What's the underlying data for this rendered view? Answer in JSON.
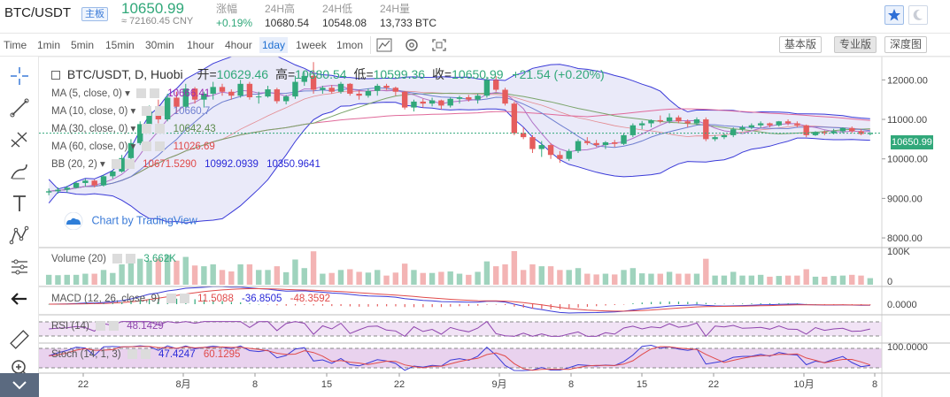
{
  "header": {
    "symbol": "BTC/USDT",
    "badge": "主板",
    "price": "10650.99",
    "cny": "≈ 72160.45 CNY",
    "stats": [
      {
        "label": "涨幅",
        "value": "+0.19%",
        "up": true
      },
      {
        "label": "24H高",
        "value": "10680.54",
        "up": false
      },
      {
        "label": "24H低",
        "value": "10548.08",
        "up": false
      },
      {
        "label": "24H量",
        "value": "13,733 BTC",
        "up": false
      }
    ],
    "buttons": [
      "star-icon",
      "moon-icon"
    ]
  },
  "toolbar": {
    "time_label": "Time",
    "intervals": [
      "1min",
      "5min",
      "15min",
      "30min",
      "1hour",
      "4hour",
      "1day",
      "1week",
      "1mon"
    ],
    "active_interval": "1day",
    "tools": [
      "chart-type-icon",
      "settings-icon",
      "fullscreen-icon"
    ],
    "modes": [
      "基本版",
      "专业版",
      "深度图"
    ],
    "active_mode": "专业版"
  },
  "left_tools": [
    "crosshair-icon",
    "trend-line-icon",
    "fib-icon",
    "brush-icon",
    "text-icon",
    "pattern-icon",
    "forecast-icon",
    "back-arrow-icon",
    "ruler-icon",
    "zoom-icon",
    "expand-chevron-icon"
  ],
  "main": {
    "title": "BTC/USDT, D, Huobi",
    "ohlc": [
      {
        "label": "开=",
        "value": "10629.46"
      },
      {
        "label": "高=",
        "value": "10680.54"
      },
      {
        "label": "低=",
        "value": "10599.36"
      },
      {
        "label": "收=",
        "value": "10650.99"
      }
    ],
    "change": "+21.54 (+0.20%)",
    "indicators": [
      {
        "name": "MA (5, close, 0)",
        "values": [
          "10666.41"
        ],
        "colors": [
          "#9c27b0"
        ]
      },
      {
        "name": "MA (10, close, 0)",
        "values": [
          "10660.7"
        ],
        "colors": [
          "#6f7fd0"
        ]
      },
      {
        "name": "MA (30, close, 0)",
        "values": [
          "10642.43"
        ],
        "colors": [
          "#7aa46a"
        ]
      },
      {
        "name": "MA (60, close, 0)",
        "values": [
          "11026.69"
        ],
        "colors": [
          "#e04a4a"
        ]
      },
      {
        "name": "BB (20, 2)",
        "values": [
          "10671.5290",
          "10992.0939",
          "10350.9641"
        ],
        "colors": [
          "#e04a4a",
          "#2a2ad8",
          "#2a2ad8"
        ]
      }
    ],
    "watermark": "Chart by TradingView",
    "price_tag": "10650.99",
    "y_ticks": [
      "12000.00",
      "11000.00",
      "10000.00",
      "9000.00",
      "8000.00"
    ]
  },
  "volume": {
    "name": "Volume (20)",
    "value": "3.662K",
    "y_ticks": [
      "100K",
      "0"
    ]
  },
  "macd": {
    "name": "MACD (12, 26, close, 9)",
    "values": [
      "11.5088",
      "-36.8505",
      "-48.3592"
    ],
    "y_tick": "0.0000"
  },
  "rsi": {
    "name": "RSI (14)",
    "value": "48.1429"
  },
  "stoch": {
    "name": "Stoch (14, 1, 3)",
    "values": [
      "47.4247",
      "60.1295"
    ],
    "y_tick": "100.0000"
  },
  "x_ticks": [
    "22",
    "8月",
    "8",
    "15",
    "22",
    "9月",
    "8",
    "15",
    "22",
    "10月",
    "8"
  ],
  "colors": {
    "up": "#31a87a",
    "down": "#e55d5d",
    "bb_fill": "#e3e3f7",
    "bb_line": "#3a3ad8",
    "accent": "#1e6fd2"
  },
  "chart_data": {
    "type": "candlestick",
    "y_range": [
      7800,
      12500
    ],
    "candles": [
      [
        9150,
        9250,
        9080,
        9180
      ],
      [
        9180,
        9280,
        9120,
        9220
      ],
      [
        9220,
        9320,
        9150,
        9270
      ],
      [
        9270,
        9420,
        9250,
        9390
      ],
      [
        9390,
        9500,
        9300,
        9450
      ],
      [
        9450,
        9480,
        9280,
        9330
      ],
      [
        9330,
        9600,
        9300,
        9560
      ],
      [
        9560,
        9720,
        9500,
        9680
      ],
      [
        9680,
        10100,
        9650,
        10020
      ],
      [
        10020,
        10500,
        9980,
        10400
      ],
      [
        10400,
        10950,
        10350,
        10880
      ],
      [
        10880,
        11350,
        10800,
        11200
      ],
      [
        11200,
        11500,
        10900,
        11000
      ],
      [
        11000,
        11650,
        10950,
        11550
      ],
      [
        11550,
        11700,
        11150,
        11320
      ],
      [
        11320,
        11900,
        11250,
        11780
      ],
      [
        11780,
        11820,
        11400,
        11500
      ],
      [
        11500,
        11700,
        11300,
        11650
      ],
      [
        11650,
        11950,
        11500,
        11820
      ],
      [
        11820,
        11900,
        11600,
        11700
      ],
      [
        11700,
        11760,
        11500,
        11600
      ],
      [
        11600,
        12000,
        11550,
        11900
      ],
      [
        11900,
        11950,
        11500,
        11560
      ],
      [
        11560,
        11700,
        11400,
        11580
      ],
      [
        11580,
        11850,
        11550,
        11760
      ],
      [
        11760,
        11800,
        11400,
        11460
      ],
      [
        11460,
        11620,
        11380,
        11580
      ],
      [
        11580,
        12100,
        11520,
        11950
      ],
      [
        11950,
        12200,
        11850,
        12100
      ],
      [
        12100,
        12450,
        11650,
        11750
      ],
      [
        11750,
        11850,
        11650,
        11800
      ],
      [
        11800,
        11870,
        11650,
        11700
      ],
      [
        11700,
        11950,
        11650,
        11900
      ],
      [
        11900,
        11920,
        11600,
        11650
      ],
      [
        11650,
        11750,
        11500,
        11600
      ],
      [
        11600,
        11780,
        11550,
        11720
      ],
      [
        11720,
        11900,
        11600,
        11850
      ],
      [
        11850,
        11900,
        11750,
        11800
      ],
      [
        11800,
        11830,
        11600,
        11700
      ],
      [
        11700,
        11720,
        11250,
        11300
      ],
      [
        11300,
        11500,
        11200,
        11450
      ],
      [
        11450,
        11520,
        11300,
        11400
      ],
      [
        11400,
        11550,
        11330,
        11480
      ],
      [
        11480,
        11500,
        11250,
        11350
      ],
      [
        11350,
        11560,
        11300,
        11520
      ],
      [
        11520,
        11600,
        11400,
        11560
      ],
      [
        11560,
        11620,
        11450,
        11500
      ],
      [
        11500,
        11650,
        11400,
        11600
      ],
      [
        11600,
        12080,
        11550,
        12000
      ],
      [
        12000,
        12100,
        11700,
        11750
      ],
      [
        11750,
        11800,
        11350,
        11400
      ],
      [
        11400,
        11450,
        10600,
        10650
      ],
      [
        10650,
        10800,
        10500,
        10550
      ],
      [
        10550,
        10600,
        10150,
        10250
      ],
      [
        10250,
        10450,
        10050,
        10350
      ],
      [
        10350,
        10400,
        10000,
        10100
      ],
      [
        10100,
        10200,
        9900,
        10000
      ],
      [
        10000,
        10250,
        9950,
        10200
      ],
      [
        10200,
        10500,
        10150,
        10450
      ],
      [
        10450,
        10550,
        10350,
        10400
      ],
      [
        10400,
        10480,
        10300,
        10350
      ],
      [
        10350,
        10450,
        10250,
        10420
      ],
      [
        10420,
        10480,
        10300,
        10380
      ],
      [
        10380,
        10650,
        10350,
        10600
      ],
      [
        10600,
        10900,
        10550,
        10850
      ],
      [
        10850,
        10960,
        10750,
        10900
      ],
      [
        10900,
        11000,
        10800,
        10980
      ],
      [
        10980,
        11100,
        10900,
        10950
      ],
      [
        10950,
        11150,
        10900,
        11050
      ],
      [
        11050,
        11100,
        10900,
        10950
      ],
      [
        10950,
        11000,
        10800,
        10900
      ],
      [
        10900,
        11050,
        10850,
        11000
      ],
      [
        11000,
        11050,
        10450,
        10500
      ],
      [
        10500,
        10600,
        10450,
        10550
      ],
      [
        10550,
        10650,
        10500,
        10600
      ],
      [
        10600,
        10800,
        10550,
        10750
      ],
      [
        10750,
        10850,
        10700,
        10800
      ],
      [
        10800,
        10900,
        10750,
        10850
      ],
      [
        10850,
        10950,
        10780,
        10900
      ],
      [
        10900,
        10920,
        10800,
        10850
      ],
      [
        10850,
        10960,
        10820,
        10950
      ],
      [
        10950,
        11000,
        10850,
        10900
      ],
      [
        10900,
        10950,
        10800,
        10850
      ],
      [
        10850,
        10870,
        10550,
        10600
      ],
      [
        10600,
        10700,
        10580,
        10680
      ],
      [
        10680,
        10720,
        10600,
        10650
      ],
      [
        10650,
        10760,
        10620,
        10700
      ],
      [
        10700,
        10800,
        10650,
        10780
      ],
      [
        10780,
        10820,
        10650,
        10700
      ],
      [
        10700,
        10750,
        10600,
        10629
      ],
      [
        10629,
        10680,
        10599,
        10651
      ]
    ]
  }
}
